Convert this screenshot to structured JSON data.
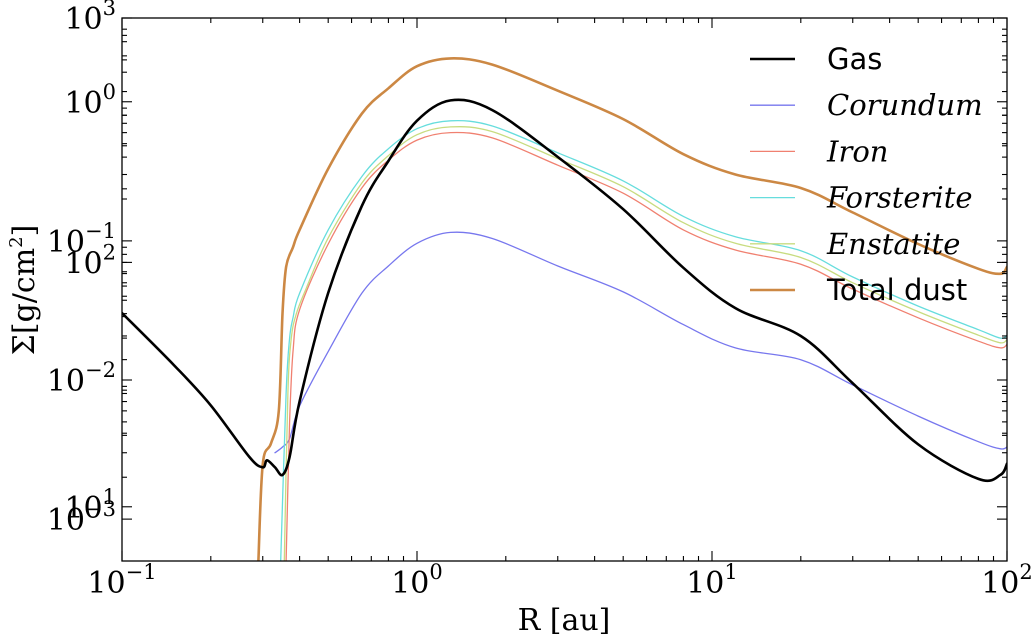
{
  "chart_data": {
    "type": "line",
    "xscale": "log",
    "xlim": [
      0.1,
      100
    ],
    "xlabel": "R [au]",
    "ylabel": "Σ[g/cm²]",
    "ylabel_parts": {
      "prefix": "Σ[g/cm",
      "sup": "2",
      "suffix": "]"
    },
    "grid": false,
    "legend_position": "upper-right",
    "x_ticks": [
      {
        "base": "10",
        "exp": "−1",
        "value": 0.1
      },
      {
        "base": "10",
        "exp": "0",
        "value": 1
      },
      {
        "base": "10",
        "exp": "1",
        "value": 10
      },
      {
        "base": "10",
        "exp": "2",
        "value": 100
      }
    ],
    "y_ticks": [
      {
        "base": "10",
        "exp": "3"
      },
      {
        "base": "10",
        "exp": "2"
      },
      {
        "base": "10",
        "exp": "1"
      },
      {
        "base": "10",
        "exp": "0"
      },
      {
        "base": "10",
        "exp": "−1"
      },
      {
        "base": "10",
        "exp": "−2"
      },
      {
        "base": "10",
        "exp": "−3"
      }
    ],
    "gas_axis": {
      "scale": "log",
      "ylim": [
        6,
        1000
      ]
    },
    "dust_axis": {
      "scale": "log",
      "ylim": [
        0.0005,
        4
      ]
    },
    "series": [
      {
        "name": "Gas",
        "italic": false,
        "color": "#000000",
        "width": 2.6,
        "axis": "gas",
        "x": [
          0.1,
          0.15,
          0.2,
          0.27,
          0.3,
          0.31,
          0.33,
          0.35,
          0.37,
          0.4,
          0.5,
          0.65,
          0.8,
          1.0,
          1.3,
          1.8,
          3.0,
          5.0,
          8.0,
          12.0,
          20.0,
          30.0,
          50.0,
          80.0,
          95.0,
          100.0
        ],
        "y": [
          62,
          38,
          26,
          16,
          14.5,
          15.5,
          14.5,
          13.5,
          16,
          27,
          75,
          170,
          260,
          380,
          460,
          420,
          270,
          165,
          95,
          65,
          50,
          32,
          18,
          13,
          13.5,
          15
        ]
      },
      {
        "name": "Corundum",
        "italic": true,
        "color": "#7777ee",
        "width": 1.3,
        "axis": "dust",
        "x": [
          0.33,
          0.35,
          0.37,
          0.4,
          0.5,
          0.65,
          0.8,
          1.0,
          1.3,
          1.8,
          3.0,
          5.0,
          8.0,
          12.0,
          20.0,
          30.0,
          50.0,
          80.0,
          95.0,
          100.0
        ],
        "y": [
          0.003,
          0.0033,
          0.0038,
          0.0065,
          0.016,
          0.042,
          0.066,
          0.096,
          0.115,
          0.104,
          0.066,
          0.043,
          0.025,
          0.017,
          0.014,
          0.0092,
          0.0055,
          0.0036,
          0.0032,
          0.0033
        ]
      },
      {
        "name": "Iron",
        "italic": true,
        "color": "#f08070",
        "width": 1.3,
        "axis": "dust",
        "x": [
          0.36,
          0.37,
          0.38,
          0.4,
          0.5,
          0.65,
          0.8,
          1.0,
          1.3,
          1.8,
          3.0,
          5.0,
          8.0,
          12.0,
          20.0,
          30.0,
          50.0,
          80.0,
          95.0,
          100.0
        ],
        "y": [
          0.0005,
          0.005,
          0.016,
          0.032,
          0.095,
          0.24,
          0.38,
          0.53,
          0.6,
          0.55,
          0.35,
          0.22,
          0.12,
          0.086,
          0.068,
          0.045,
          0.028,
          0.019,
          0.017,
          0.018
        ]
      },
      {
        "name": "Forsterite",
        "italic": true,
        "color": "#66dddd",
        "width": 1.3,
        "axis": "dust",
        "x": [
          0.345,
          0.36,
          0.37,
          0.38,
          0.4,
          0.5,
          0.65,
          0.8,
          1.0,
          1.3,
          1.8,
          3.0,
          5.0,
          8.0,
          12.0,
          20.0,
          30.0,
          50.0,
          80.0,
          95.0,
          100.0
        ],
        "y": [
          0.0005,
          0.008,
          0.02,
          0.028,
          0.042,
          0.12,
          0.29,
          0.46,
          0.64,
          0.73,
          0.67,
          0.43,
          0.27,
          0.15,
          0.107,
          0.085,
          0.055,
          0.034,
          0.023,
          0.02,
          0.021
        ]
      },
      {
        "name": "Enstatite",
        "italic": true,
        "color": "#c8dc80",
        "width": 1.3,
        "axis": "dust",
        "x": [
          0.355,
          0.365,
          0.375,
          0.39,
          0.42,
          0.5,
          0.65,
          0.8,
          1.0,
          1.3,
          1.8,
          3.0,
          5.0,
          8.0,
          12.0,
          20.0,
          30.0,
          50.0,
          80.0,
          95.0,
          100.0
        ],
        "y": [
          0.0005,
          0.008,
          0.02,
          0.03,
          0.045,
          0.105,
          0.26,
          0.41,
          0.58,
          0.66,
          0.61,
          0.39,
          0.245,
          0.135,
          0.096,
          0.076,
          0.05,
          0.031,
          0.021,
          0.0185,
          0.0195
        ]
      },
      {
        "name": "Total dust",
        "italic": false,
        "color": "#cc8844",
        "width": 2.6,
        "axis": "dust",
        "x": [
          0.29,
          0.3,
          0.32,
          0.34,
          0.35,
          0.36,
          0.38,
          0.4,
          0.5,
          0.65,
          0.8,
          1.0,
          1.3,
          1.8,
          3.0,
          5.0,
          8.0,
          12.0,
          20.0,
          30.0,
          50.0,
          80.0,
          95.0,
          100.0
        ],
        "y": [
          0.0005,
          0.0025,
          0.0035,
          0.006,
          0.03,
          0.065,
          0.09,
          0.12,
          0.33,
          0.82,
          1.25,
          1.8,
          2.05,
          1.85,
          1.2,
          0.75,
          0.42,
          0.3,
          0.24,
          0.16,
          0.095,
          0.063,
          0.058,
          0.065
        ]
      }
    ]
  }
}
